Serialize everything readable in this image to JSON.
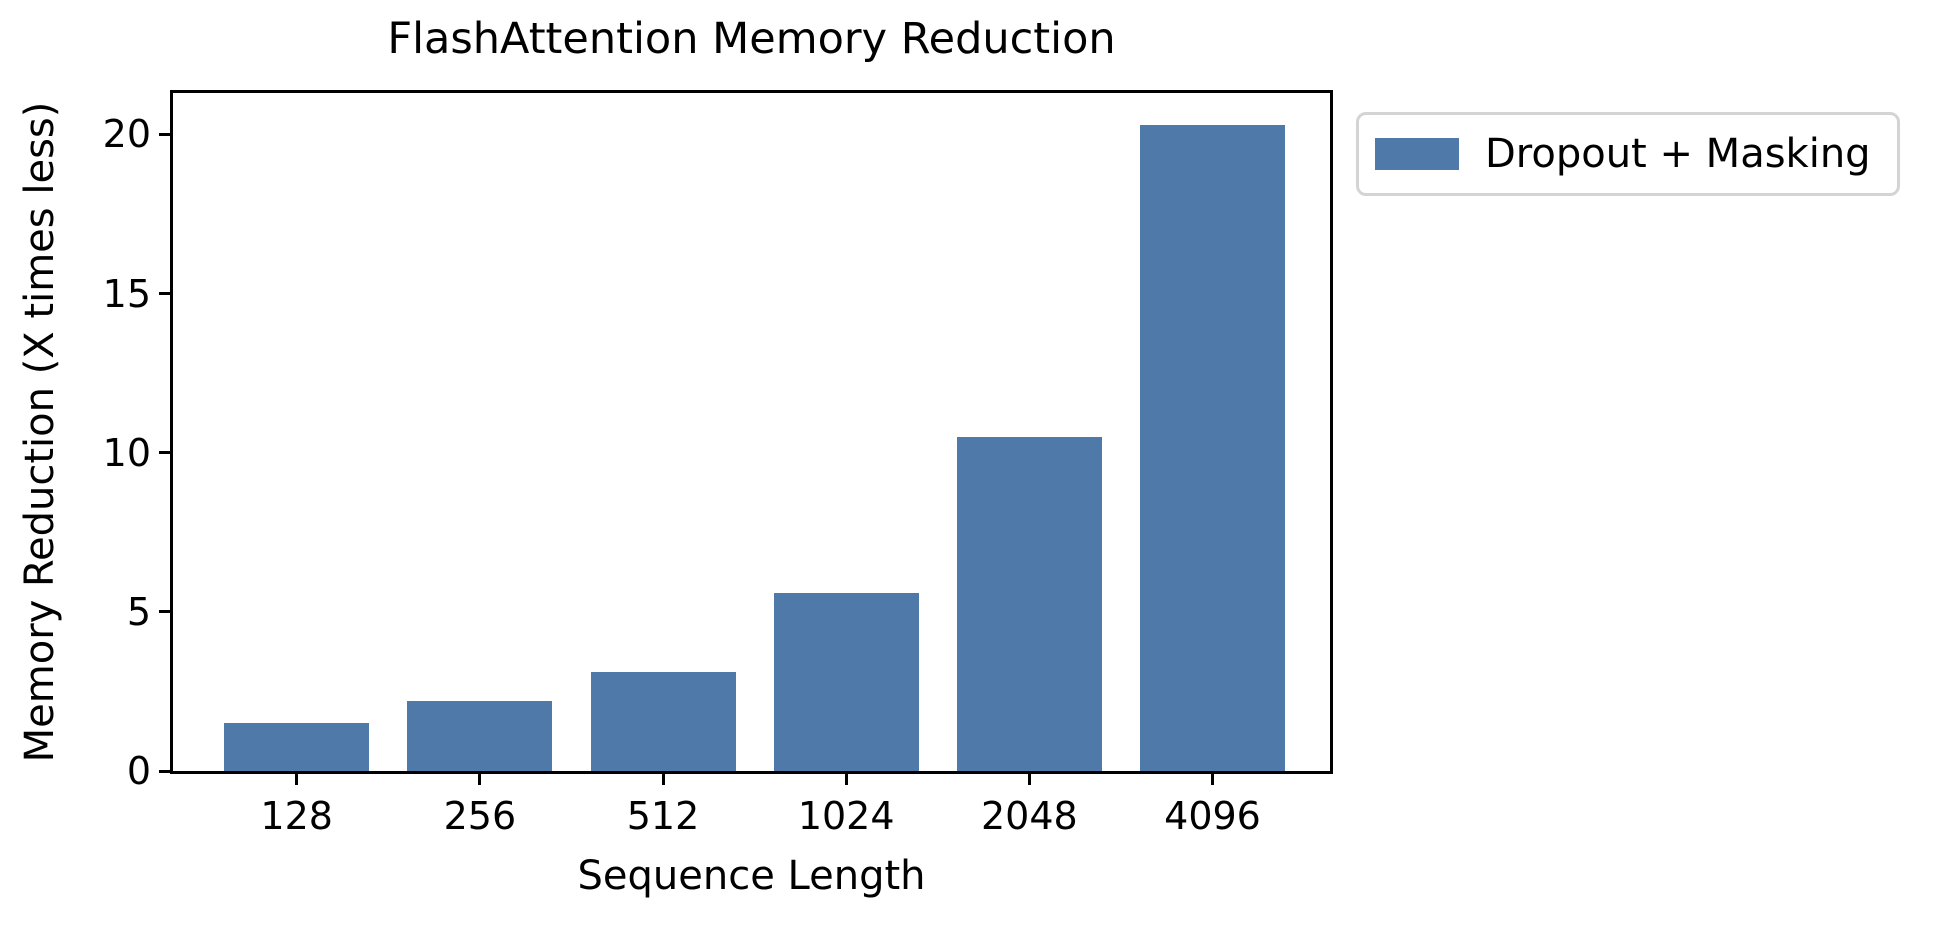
{
  "chart_data": {
    "type": "bar",
    "title": "FlashAttention Memory Reduction",
    "xlabel": "Sequence Length",
    "ylabel": "Memory Reduction (X times less)",
    "categories": [
      "128",
      "256",
      "512",
      "1024",
      "2048",
      "4096"
    ],
    "series": [
      {
        "name": "Dropout + Masking",
        "values": [
          1.5,
          2.2,
          3.1,
          5.6,
          10.5,
          20.3
        ]
      }
    ],
    "yticks": [
      0,
      5,
      10,
      15,
      20
    ],
    "ylim": [
      0,
      21.3
    ],
    "grid": false,
    "legend_position": "outside-upper-right",
    "bar_color": "#4e79a8"
  },
  "legend": {
    "label": "Dropout + Masking",
    "swatch_color": "#4e79a8"
  }
}
